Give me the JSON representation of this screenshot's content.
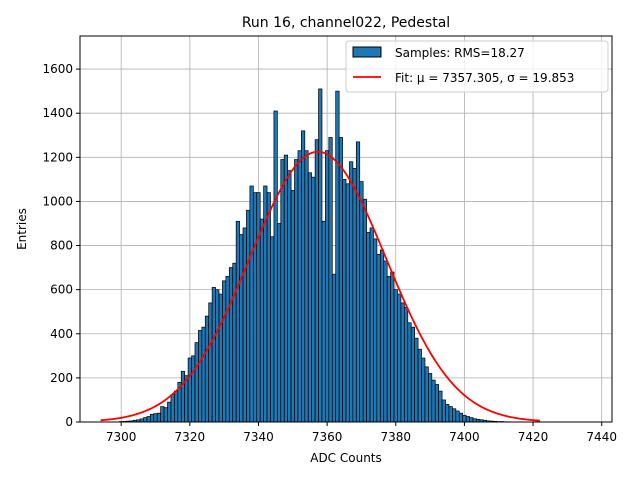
{
  "chart_data": {
    "type": "bar",
    "title": "Run 16, channel022, Pedestal",
    "xlabel": "ADC Counts",
    "ylabel": "Entries",
    "xlim": [
      7288,
      7443
    ],
    "ylim": [
      0,
      1750
    ],
    "xticks": [
      7300,
      7320,
      7340,
      7360,
      7380,
      7400,
      7420,
      7440
    ],
    "yticks": [
      0,
      200,
      400,
      600,
      800,
      1000,
      1200,
      1400,
      1600
    ],
    "grid": true,
    "legend_position": "top-right",
    "colors": {
      "bars": "#1f77b4",
      "bar_edge": "#000000",
      "fit": "#ff0000",
      "grid": "#b0b0b0"
    },
    "bin_width": 1,
    "x": [
      7300,
      7301,
      7302,
      7303,
      7304,
      7305,
      7306,
      7307,
      7308,
      7309,
      7310,
      7311,
      7312,
      7313,
      7314,
      7315,
      7316,
      7317,
      7318,
      7319,
      7320,
      7321,
      7322,
      7323,
      7324,
      7325,
      7326,
      7327,
      7328,
      7329,
      7330,
      7331,
      7332,
      7333,
      7334,
      7335,
      7336,
      7337,
      7338,
      7339,
      7340,
      7341,
      7342,
      7343,
      7344,
      7345,
      7346,
      7347,
      7348,
      7349,
      7350,
      7351,
      7352,
      7353,
      7354,
      7355,
      7356,
      7357,
      7358,
      7359,
      7360,
      7361,
      7362,
      7363,
      7364,
      7365,
      7366,
      7367,
      7368,
      7369,
      7370,
      7371,
      7372,
      7373,
      7374,
      7375,
      7376,
      7377,
      7378,
      7379,
      7380,
      7381,
      7382,
      7383,
      7384,
      7385,
      7386,
      7387,
      7388,
      7389,
      7390,
      7391,
      7392,
      7393,
      7394,
      7395,
      7396,
      7397,
      7398,
      7399,
      7400,
      7401,
      7402,
      7403,
      7404,
      7405,
      7406,
      7407,
      7408,
      7409,
      7410,
      7411,
      7412,
      7413,
      7414,
      7415
    ],
    "values": [
      2,
      3,
      4,
      5,
      8,
      10,
      14,
      20,
      25,
      35,
      38,
      40,
      70,
      65,
      90,
      125,
      140,
      180,
      230,
      210,
      290,
      300,
      360,
      415,
      430,
      480,
      540,
      610,
      600,
      580,
      640,
      660,
      700,
      720,
      910,
      850,
      880,
      960,
      1070,
      1040,
      1040,
      920,
      1070,
      1040,
      840,
      1410,
      900,
      1190,
      1210,
      1140,
      1050,
      1190,
      1230,
      1320,
      1230,
      1130,
      1110,
      1280,
      1510,
      910,
      1230,
      1290,
      670,
      1500,
      1290,
      1100,
      1080,
      1180,
      1150,
      1270,
      1090,
      1010,
      860,
      880,
      830,
      760,
      780,
      730,
      660,
      680,
      600,
      580,
      540,
      520,
      450,
      430,
      380,
      330,
      290,
      250,
      220,
      190,
      170,
      140,
      100,
      80,
      70,
      60,
      50,
      40,
      30,
      25,
      20,
      15,
      12,
      10,
      8,
      5,
      4,
      3,
      2,
      2,
      1,
      1,
      0,
      0
    ],
    "series": [
      {
        "name": "Samples: RMS=18.27",
        "type": "histogram"
      },
      {
        "name": "Fit: μ = 7357.305, σ = 19.853",
        "type": "line",
        "mu": 7357.305,
        "sigma": 19.853,
        "amplitude": 1225,
        "x_range": [
          7294,
          7422
        ]
      }
    ]
  }
}
